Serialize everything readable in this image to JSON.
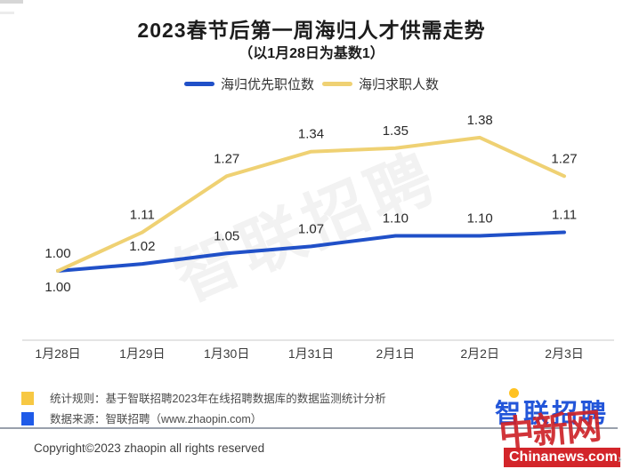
{
  "title": "2023春节后第一周海归人才供需走势",
  "subtitle": "（以1月28日为基数1）",
  "legend": [
    {
      "label": "海归优先职位数",
      "color": "#2050c8"
    },
    {
      "label": "海归求职人数",
      "color": "#efd173"
    }
  ],
  "watermark": "智联招聘",
  "chart_data": {
    "type": "line",
    "categories": [
      "1月28日",
      "1月29日",
      "1月30日",
      "1月31日",
      "2月1日",
      "2月2日",
      "2月3日"
    ],
    "series": [
      {
        "name": "海归优先职位数",
        "color": "#2050c8",
        "values": [
          1.0,
          1.02,
          1.05,
          1.07,
          1.1,
          1.1,
          1.11
        ],
        "first_label_below": true
      },
      {
        "name": "海归求职人数",
        "color": "#efd173",
        "values": [
          1.0,
          1.11,
          1.27,
          1.34,
          1.35,
          1.38,
          1.27
        ],
        "first_label_below": false
      }
    ],
    "title": "2023春节后第一周海归人才供需走势",
    "subtitle": "（以1月28日为基数1）",
    "xlabel": "",
    "ylabel": "",
    "ylim": [
      0.95,
      1.45
    ],
    "grid": false,
    "legend_position": "top",
    "point_labels": true,
    "axis_line_color": "#dcdcdc",
    "point_label_color": "#2a2a2a",
    "category_label_color": "#3b3b3b"
  },
  "footer": {
    "notes": [
      {
        "swatch": "#f7c843",
        "text": "统计规则：基于智联招聘2023年在线招聘数据库的数据监测统计分析"
      },
      {
        "swatch": "#1e5ae8",
        "text": "数据来源：智联招聘（www.zhaopin.com）"
      }
    ],
    "copyright": "Copyright©2023 zhaopin all rights reserved"
  },
  "branding": {
    "zhaopin_logo": "智联招聘",
    "logo_color": "#2356d9",
    "stamp": "中新网",
    "stamp_color": "#ce2329",
    "banner": "Chinanews.com",
    "banner_bg": "#d3252a",
    "chevron": "›"
  }
}
